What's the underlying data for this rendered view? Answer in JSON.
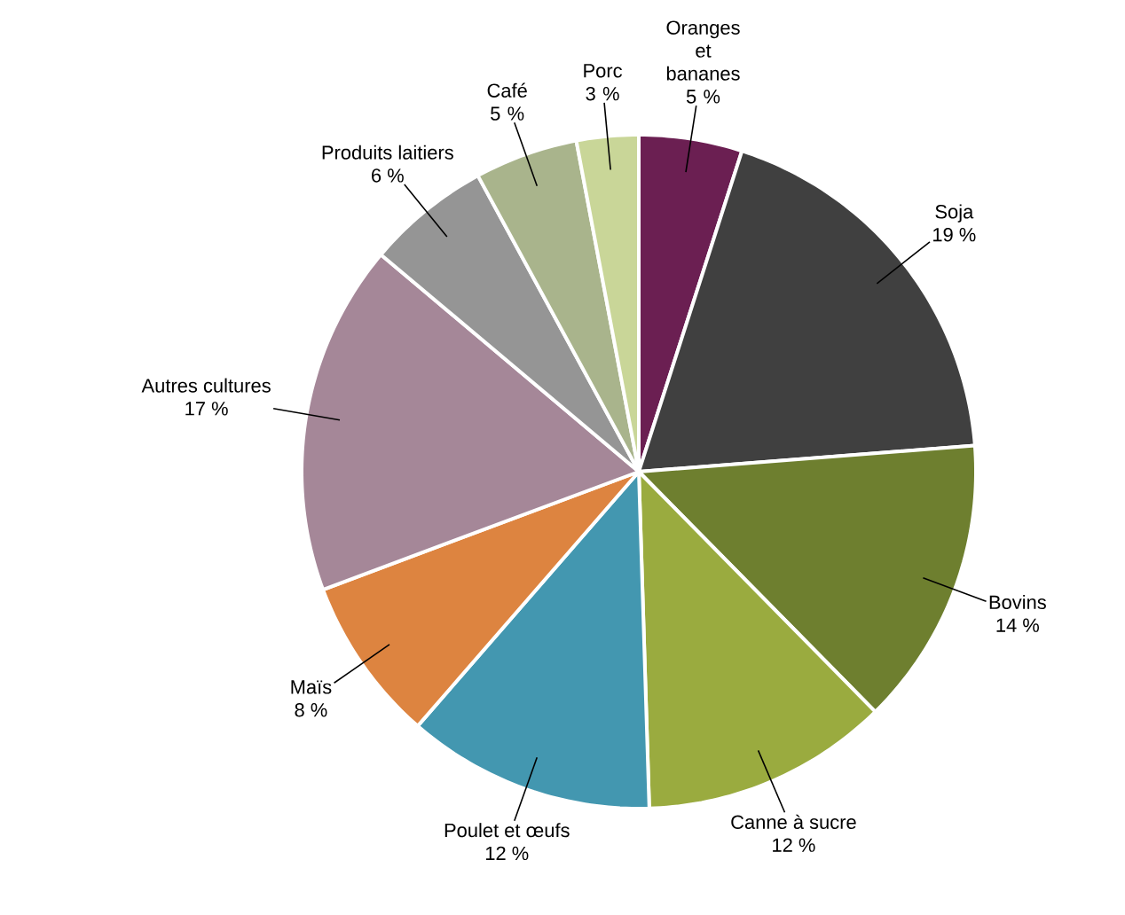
{
  "chart_data": {
    "type": "pie",
    "categories": [
      "Oranges et bananes",
      "Soja",
      "Bovins",
      "Canne à sucre",
      "Poulet et œufs",
      "Maïs",
      "Autres cultures",
      "Produits laitiers",
      "Café",
      "Porc"
    ],
    "values": [
      5,
      19,
      14,
      12,
      12,
      8,
      17,
      6,
      5,
      3
    ],
    "value_labels": [
      "5 %",
      "19 %",
      "14 %",
      "12 %",
      "12 %",
      "8 %",
      "17 %",
      "6 %",
      "5 %",
      "3 %"
    ],
    "colors": [
      "#6b1f52",
      "#404040",
      "#6e7f2f",
      "#9aab3f",
      "#4397b0",
      "#dd8440",
      "#a58798",
      "#959595",
      "#a9b48c",
      "#c9d698"
    ]
  }
}
